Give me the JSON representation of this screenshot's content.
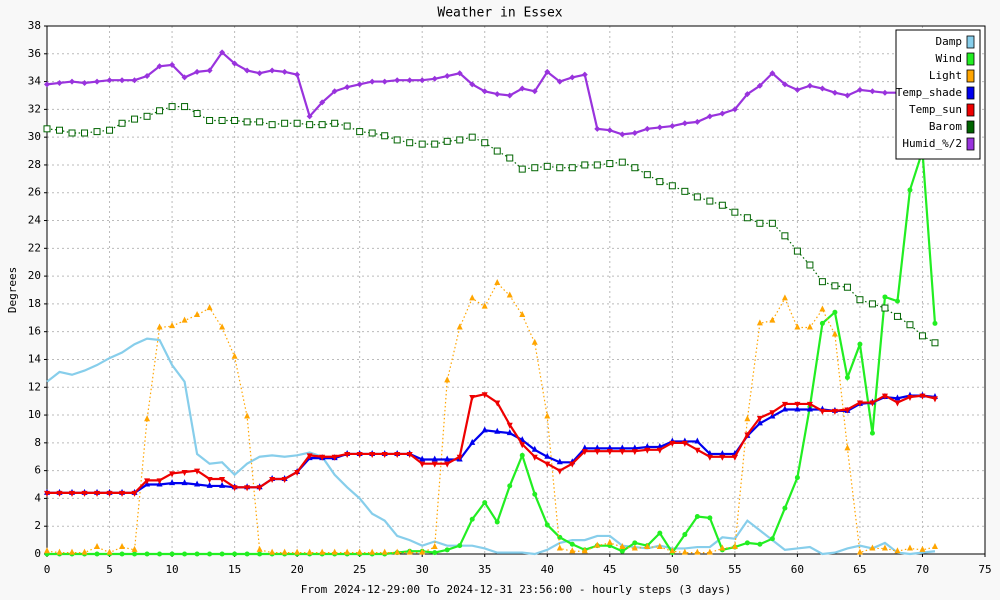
{
  "chart_data": {
    "type": "line",
    "title": "Weather in Essex",
    "x_label": "From 2024-12-29:00 To 2024-12-31 23:56:00 - hourly steps (3 days)",
    "y_label": "Degrees",
    "x": [
      0,
      1,
      2,
      3,
      4,
      5,
      6,
      7,
      8,
      9,
      10,
      11,
      12,
      13,
      14,
      15,
      16,
      17,
      18,
      19,
      20,
      21,
      22,
      23,
      24,
      25,
      26,
      27,
      28,
      29,
      30,
      31,
      32,
      33,
      34,
      35,
      36,
      37,
      38,
      39,
      40,
      41,
      42,
      43,
      44,
      45,
      46,
      47,
      48,
      49,
      50,
      51,
      52,
      53,
      54,
      55,
      56,
      57,
      58,
      59,
      60,
      61,
      62,
      63,
      64,
      65,
      66,
      67,
      68,
      69,
      70,
      71
    ],
    "xlim": [
      0,
      75
    ],
    "xticks": [
      0,
      5,
      10,
      15,
      20,
      25,
      30,
      35,
      40,
      45,
      50,
      55,
      60,
      65,
      70,
      75
    ],
    "ylim": [
      0,
      38
    ],
    "yticks": [
      0,
      2,
      4,
      6,
      8,
      10,
      12,
      14,
      16,
      18,
      20,
      22,
      24,
      26,
      28,
      30,
      32,
      34,
      36,
      38
    ],
    "grid": true,
    "legend": "top-right",
    "series": [
      {
        "name": "Damp",
        "color": "#87ceeb",
        "marker": "none",
        "dashed": false,
        "values": [
          12.4,
          13.1,
          12.9,
          13.2,
          13.6,
          14.1,
          14.5,
          15.1,
          15.5,
          15.4,
          13.6,
          12.4,
          7.2,
          6.5,
          6.6,
          5.7,
          6.5,
          7.0,
          7.1,
          7.0,
          7.1,
          7.3,
          7.0,
          5.7,
          4.8,
          4.0,
          2.9,
          2.4,
          1.3,
          1.0,
          0.6,
          0.9,
          0.6,
          0.6,
          0.6,
          0.4,
          0.1,
          0.1,
          0.1,
          0.0,
          0.3,
          0.8,
          1.0,
          1.0,
          1.3,
          1.3,
          0.6,
          0.5,
          0.4,
          0.6,
          0.4,
          0.4,
          0.5,
          0.5,
          1.2,
          1.1,
          2.4,
          1.7,
          1.0,
          0.3,
          0.4,
          0.5,
          0.0,
          0.1,
          0.4,
          0.6,
          0.4,
          0.8,
          0.1,
          0.0,
          0.1,
          0.2
        ]
      },
      {
        "name": "Wind",
        "color": "#22ee22",
        "marker": "circle",
        "dashed": false,
        "values": [
          0,
          0,
          0,
          0,
          0,
          0,
          0,
          0,
          0,
          0,
          0,
          0,
          0,
          0,
          0,
          0,
          0,
          0,
          0,
          0,
          0,
          0,
          0,
          0,
          0,
          0,
          0,
          0,
          0.1,
          0.2,
          0.2,
          0.1,
          0.3,
          0.6,
          2.5,
          3.7,
          2.3,
          4.9,
          7.1,
          4.3,
          2.1,
          1.2,
          0.7,
          0.3,
          0.6,
          0.6,
          0.2,
          0.8,
          0.6,
          1.5,
          0.1,
          1.4,
          2.7,
          2.6,
          0.3,
          0.5,
          0.8,
          0.7,
          1.1,
          3.3,
          5.5,
          10.6,
          16.6,
          17.4,
          12.7,
          15.1,
          8.7,
          18.5,
          18.2,
          26.2,
          29.0,
          16.6
        ]
      },
      {
        "name": "Light",
        "color": "#ffa500",
        "marker": "triangle-up",
        "dashed": true,
        "values": [
          0.2,
          0.1,
          0.1,
          0.1,
          0.5,
          0.1,
          0.5,
          0.3,
          9.7,
          16.3,
          16.4,
          16.8,
          17.2,
          17.7,
          16.3,
          14.2,
          9.9,
          0.3,
          0.1,
          0.1,
          0.1,
          0.1,
          0.1,
          0.1,
          0.1,
          0.1,
          0.1,
          0.1,
          0.1,
          0.1,
          0.1,
          0.5,
          12.5,
          16.3,
          18.4,
          17.8,
          19.5,
          18.6,
          17.2,
          15.2,
          9.9,
          0.4,
          0.2,
          0.2,
          0.6,
          0.8,
          0.5,
          0.4,
          0.5,
          0.5,
          0.2,
          0.1,
          0.1,
          0.1,
          0.4,
          0.5,
          9.7,
          16.6,
          16.8,
          18.4,
          16.3,
          16.3,
          17.6,
          15.8,
          7.6,
          0.1,
          0.4,
          0.4,
          0.2,
          0.4,
          0.3,
          0.5
        ]
      },
      {
        "name": "Temp_shade",
        "color": "#0000ee",
        "marker": "triangle-up",
        "dashed": false,
        "values": [
          4.4,
          4.4,
          4.4,
          4.4,
          4.4,
          4.4,
          4.4,
          4.4,
          5.0,
          5.0,
          5.1,
          5.1,
          5.0,
          4.9,
          4.9,
          4.8,
          4.8,
          4.8,
          5.4,
          5.4,
          5.9,
          6.9,
          6.9,
          6.9,
          7.2,
          7.2,
          7.2,
          7.2,
          7.2,
          7.2,
          6.8,
          6.8,
          6.8,
          6.8,
          8.0,
          8.9,
          8.8,
          8.7,
          8.2,
          7.5,
          7.0,
          6.6,
          6.6,
          7.6,
          7.6,
          7.6,
          7.6,
          7.6,
          7.7,
          7.7,
          8.1,
          8.1,
          8.1,
          7.2,
          7.2,
          7.2,
          8.5,
          9.4,
          9.9,
          10.4,
          10.4,
          10.4,
          10.4,
          10.3,
          10.3,
          10.8,
          10.9,
          11.3,
          11.2,
          11.4,
          11.4,
          11.3
        ]
      },
      {
        "name": "Temp_sun",
        "color": "#ee0000",
        "marker": "triangle-down",
        "dashed": false,
        "values": [
          4.4,
          4.4,
          4.4,
          4.4,
          4.4,
          4.4,
          4.4,
          4.4,
          5.3,
          5.3,
          5.8,
          5.9,
          6.0,
          5.4,
          5.4,
          4.8,
          4.8,
          4.8,
          5.4,
          5.4,
          5.9,
          7.1,
          7.0,
          7.0,
          7.2,
          7.2,
          7.2,
          7.2,
          7.2,
          7.2,
          6.5,
          6.5,
          6.5,
          7.0,
          11.3,
          11.5,
          10.9,
          9.3,
          7.9,
          7.0,
          6.5,
          6.0,
          6.5,
          7.4,
          7.4,
          7.4,
          7.4,
          7.4,
          7.5,
          7.5,
          8.0,
          8.0,
          7.5,
          7.0,
          7.0,
          7.0,
          8.6,
          9.8,
          10.2,
          10.8,
          10.8,
          10.8,
          10.3,
          10.3,
          10.4,
          10.9,
          10.9,
          11.4,
          10.9,
          11.3,
          11.4,
          11.2
        ]
      },
      {
        "name": "Barom",
        "color": "#006400",
        "marker": "square",
        "dashed": true,
        "values": [
          30.6,
          30.5,
          30.3,
          30.3,
          30.4,
          30.5,
          31.0,
          31.3,
          31.5,
          31.9,
          32.2,
          32.2,
          31.7,
          31.2,
          31.2,
          31.2,
          31.1,
          31.1,
          30.9,
          31.0,
          31.0,
          30.9,
          30.9,
          31.0,
          30.8,
          30.4,
          30.3,
          30.1,
          29.8,
          29.6,
          29.5,
          29.5,
          29.7,
          29.8,
          30.0,
          29.6,
          29.0,
          28.5,
          27.7,
          27.8,
          27.9,
          27.8,
          27.8,
          28.0,
          28.0,
          28.1,
          28.2,
          27.8,
          27.3,
          26.8,
          26.5,
          26.1,
          25.7,
          25.4,
          25.1,
          24.6,
          24.2,
          23.8,
          23.8,
          22.9,
          21.8,
          20.8,
          19.6,
          19.3,
          19.2,
          18.3,
          18.0,
          17.7,
          17.1,
          16.5,
          15.7,
          15.2
        ]
      },
      {
        "name": "Humid_%/2",
        "color": "#9933dd",
        "marker": "diamond",
        "dashed": false,
        "values": [
          33.8,
          33.9,
          34.0,
          33.9,
          34.0,
          34.1,
          34.1,
          34.1,
          34.4,
          35.1,
          35.2,
          34.3,
          34.7,
          34.8,
          36.1,
          35.3,
          34.8,
          34.6,
          34.8,
          34.7,
          34.5,
          31.5,
          32.5,
          33.3,
          33.6,
          33.8,
          34.0,
          34.0,
          34.1,
          34.1,
          34.1,
          34.2,
          34.4,
          34.6,
          33.8,
          33.3,
          33.1,
          33.0,
          33.5,
          33.3,
          34.7,
          34.0,
          34.3,
          34.5,
          30.6,
          30.5,
          30.2,
          30.3,
          30.6,
          30.7,
          30.8,
          31.0,
          31.1,
          31.5,
          31.7,
          32.0,
          33.1,
          33.7,
          34.6,
          33.8,
          33.4,
          33.7,
          33.5,
          33.2,
          33.0,
          33.4,
          33.3,
          33.2,
          33.2,
          32.9,
          33.0,
          33.1
        ]
      }
    ]
  }
}
